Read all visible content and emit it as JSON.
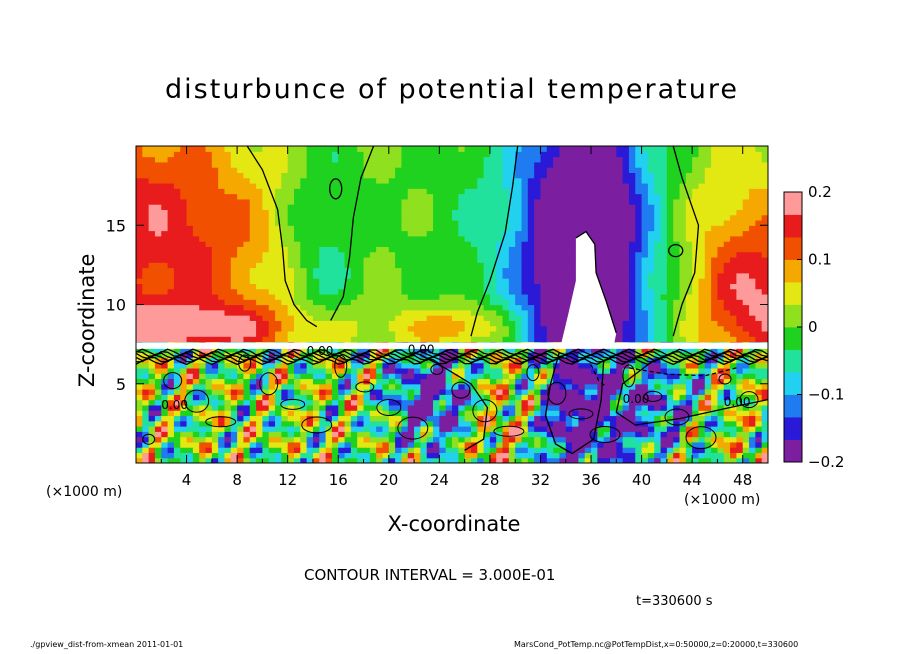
{
  "chart_data": {
    "type": "heatmap",
    "title": "disturbunce of potential temperature",
    "xlabel": "X-coordinate",
    "ylabel": "Z-coordinate",
    "x_scale_note": "(×1000 m)",
    "xlim": [
      0,
      50
    ],
    "ylim": [
      0,
      20
    ],
    "x_ticks": [
      4,
      8,
      12,
      16,
      20,
      24,
      28,
      32,
      36,
      40,
      44,
      48
    ],
    "y_ticks": [
      5,
      10,
      15
    ],
    "colorbar": {
      "range": [
        -0.2,
        0.2
      ],
      "ticks": [
        {
          "value": 0.2,
          "label": "0.2"
        },
        {
          "value": 0.1,
          "label": "0.1"
        },
        {
          "value": 0,
          "label": "0"
        },
        {
          "value": -0.1,
          "label": "−0.1"
        },
        {
          "value": -0.2,
          "label": "−0.2"
        }
      ],
      "colors": [
        "#7b1fa0",
        "#2a1ad8",
        "#1e7cf0",
        "#22d0f0",
        "#21e29c",
        "#1fd21f",
        "#8fe01e",
        "#e4e812",
        "#f5a800",
        "#f05000",
        "#e81c1c",
        "#ff9a9a"
      ]
    },
    "contour_labels": [
      "0.00",
      "0.00",
      "0.00",
      "0.00",
      "0.00"
    ],
    "contour_interval_text": "CONTOUR INTERVAL = 3.000E-01",
    "time_label": "t=330600 s",
    "grid": false
  },
  "footer": {
    "left": "./gpview_dist-from-xmean  2011-01-01",
    "right": "MarsCond_PotTemp.nc@PotTempDist,x=0:50000,z=0:20000,t=330600"
  },
  "colors": {
    "background": "#ffffff",
    "frame": "#000000"
  }
}
